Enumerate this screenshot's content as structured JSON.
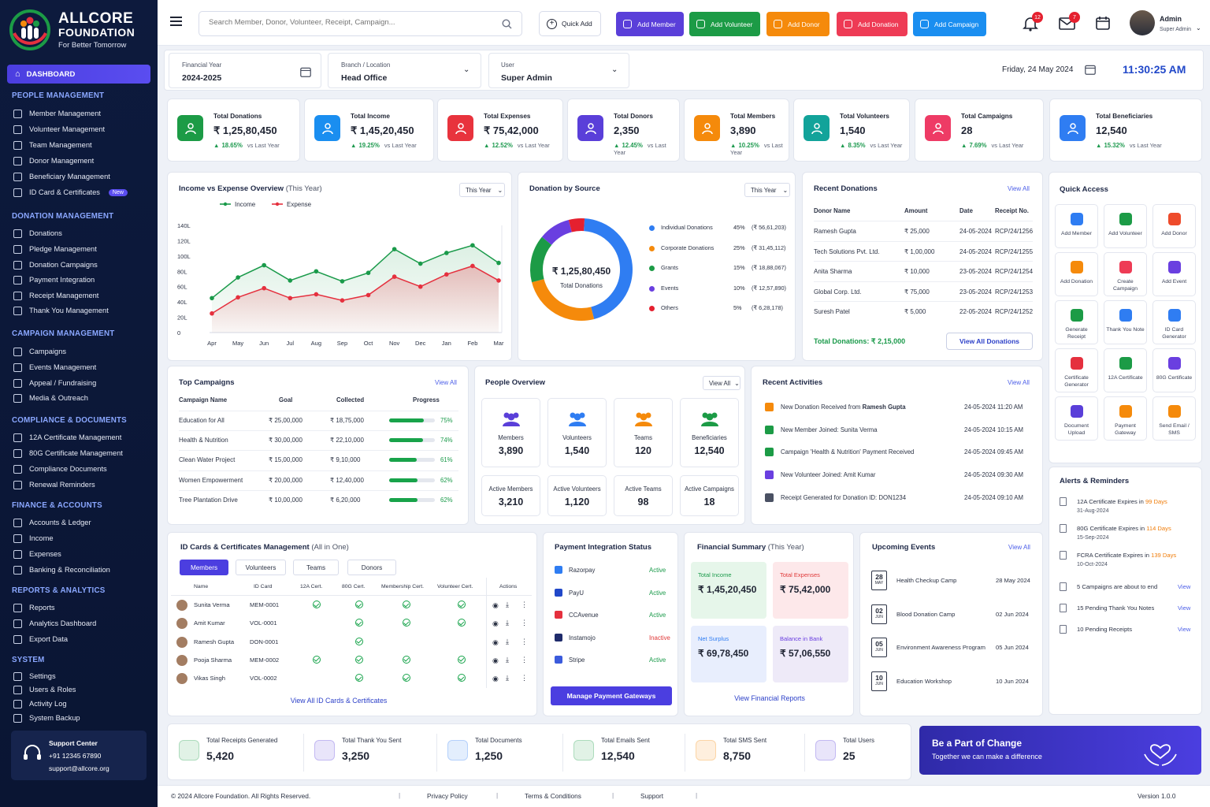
{
  "brand": {
    "name": "ALLCORE",
    "sub": "FOUNDATION",
    "tagline": "For Better Tomorrow"
  },
  "sidebar": {
    "dashboard": "DASHBOARD",
    "sections": [
      {
        "title": "PEOPLE MANAGEMENT",
        "items": [
          "Member Management",
          "Volunteer Management",
          "Team Management",
          "Donor Management",
          "Beneficiary Management",
          "ID Card & Certificates"
        ]
      },
      {
        "title": "DONATION MANAGEMENT",
        "items": [
          "Donations",
          "Pledge Management",
          "Donation Campaigns",
          "Payment Integration",
          "Receipt Management",
          "Thank You Management"
        ]
      },
      {
        "title": "CAMPAIGN MANAGEMENT",
        "items": [
          "Campaigns",
          "Events Management",
          "Appeal / Fundraising",
          "Media & Outreach"
        ]
      },
      {
        "title": "COMPLIANCE & DOCUMENTS",
        "items": [
          "12A Certificate Management",
          "80G Certificate Management",
          "Compliance Documents",
          "Renewal Reminders"
        ]
      },
      {
        "title": "FINANCE & ACCOUNTS",
        "items": [
          "Accounts & Ledger",
          "Income",
          "Expenses",
          "Banking & Reconciliation"
        ]
      },
      {
        "title": "REPORTS & ANALYTICS",
        "items": [
          "Reports",
          "Analytics Dashboard",
          "Export Data"
        ]
      },
      {
        "title": "SYSTEM",
        "items": [
          "Settings",
          "Users & Roles",
          "Activity Log",
          "System Backup"
        ]
      }
    ],
    "new_badge": "New",
    "support": {
      "title": "Support Center",
      "phone": "+91 12345 67890",
      "email": "support@allcore.org"
    }
  },
  "topbar": {
    "search_placeholder": "Search Member, Donor, Volunteer, Receipt, Campaign...",
    "quick_add": "Quick Add",
    "buttons": [
      {
        "label": "Add Member",
        "color": "#5a3fd9"
      },
      {
        "label": "Add Volunteer",
        "color": "#1c9b46"
      },
      {
        "label": "Add Donor",
        "color": "#f58a0b"
      },
      {
        "label": "Add Donation",
        "color": "#ee3b55"
      },
      {
        "label": "Add Campaign",
        "color": "#1a8ef0"
      }
    ],
    "notif_count": "12",
    "mail_count": "7",
    "user_name": "Admin",
    "user_role": "Super Admin"
  },
  "filters": {
    "fy_label": "Financial Year",
    "fy_value": "2024-2025",
    "branch_label": "Branch / Location",
    "branch_value": "Head Office",
    "user_label": "User",
    "user_value": "Super Admin",
    "date": "Friday, 24 May 2024",
    "time": "11:30:25 AM"
  },
  "stats": [
    {
      "label": "Total Donations",
      "value": "₹ 1,25,80,450",
      "change": "18.65%",
      "color": "#1c9b46"
    },
    {
      "label": "Total Income",
      "value": "₹ 1,45,20,450",
      "change": "19.25%",
      "color": "#1a8ef0"
    },
    {
      "label": "Total Expenses",
      "value": "₹ 75,42,000",
      "change": "12.52%",
      "color": "#e8333d"
    },
    {
      "label": "Total Donors",
      "value": "2,350",
      "change": "12.45%",
      "color": "#5a3fd9"
    },
    {
      "label": "Total Members",
      "value": "3,890",
      "change": "10.25%",
      "color": "#f58a0b"
    },
    {
      "label": "Total Volunteers",
      "value": "1,540",
      "change": "8.35%",
      "color": "#12a39a"
    },
    {
      "label": "Total Campaigns",
      "value": "28",
      "change": "7.69%",
      "color": "#ee3b65"
    },
    {
      "label": "Total Beneficiaries",
      "value": "12,540",
      "change": "15.32%",
      "color": "#2f7df2"
    }
  ],
  "vs_last_year": "vs Last Year",
  "income_chart": {
    "title": "Income vs Expense Overview",
    "title_suffix": "(This Year)",
    "period": "This Year",
    "chart_data": {
      "type": "line",
      "categories": [
        "Apr",
        "May",
        "Jun",
        "Jul",
        "Aug",
        "Sep",
        "Oct",
        "Nov",
        "Dec",
        "Jan",
        "Feb",
        "Mar"
      ],
      "series": [
        {
          "name": "Income",
          "color": "#1a9a4a",
          "values": [
            45,
            72,
            88,
            68,
            80,
            67,
            78,
            109,
            90,
            104,
            114,
            91
          ]
        },
        {
          "name": "Expense",
          "color": "#e5303e",
          "values": [
            25,
            46,
            58,
            45,
            50,
            42,
            49,
            73,
            60,
            76,
            87,
            68
          ]
        }
      ],
      "yticks": [
        "0",
        "20L",
        "40L",
        "60L",
        "80L",
        "100L",
        "120L",
        "140L"
      ],
      "ylim": [
        0,
        140
      ]
    }
  },
  "donation_source": {
    "title": "Donation by Source",
    "period": "This Year",
    "center_value": "₹ 1,25,80,450",
    "center_label": "Total Donations",
    "chart_data": {
      "type": "pie",
      "slices": [
        {
          "name": "Individual Donations",
          "pct": "45%",
          "amount": "(₹ 56,61,203)",
          "value": 45,
          "color": "#2f7df2"
        },
        {
          "name": "Corporate Donations",
          "pct": "25%",
          "amount": "(₹ 31,45,112)",
          "value": 25,
          "color": "#f58a0b"
        },
        {
          "name": "Grants",
          "pct": "15%",
          "amount": "(₹ 18,88,067)",
          "value": 15,
          "color": "#1c9b46"
        },
        {
          "name": "Events",
          "pct": "10%",
          "amount": "(₹ 12,57,890)",
          "value": 10,
          "color": "#6a3fe0"
        },
        {
          "name": "Others",
          "pct": "5%",
          "amount": "(₹ 6,28,178)",
          "value": 5,
          "color": "#e5202f"
        }
      ]
    }
  },
  "recent_donations": {
    "title": "Recent Donations",
    "view_all": "View All",
    "headers": [
      "Donor Name",
      "Amount",
      "Date",
      "Receipt No."
    ],
    "rows": [
      [
        "Ramesh Gupta",
        "₹ 25,000",
        "24-05-2024",
        "RCP/24/1256"
      ],
      [
        "Tech Solutions Pvt. Ltd.",
        "₹ 1,00,000",
        "24-05-2024",
        "RCP/24/1255"
      ],
      [
        "Anita Sharma",
        "₹ 10,000",
        "23-05-2024",
        "RCP/24/1254"
      ],
      [
        "Global Corp. Ltd.",
        "₹ 75,000",
        "23-05-2024",
        "RCP/24/1253"
      ],
      [
        "Suresh Patel",
        "₹ 5,000",
        "22-05-2024",
        "RCP/24/1252"
      ]
    ],
    "total_label": "Total Donations:",
    "total_value": "₹ 2,15,000",
    "view_button": "View All Donations"
  },
  "quick_access": {
    "title": "Quick Access",
    "items": [
      {
        "label": "Add Member",
        "color": "#2f7df2"
      },
      {
        "label": "Add Volunteer",
        "color": "#1c9b46"
      },
      {
        "label": "Add Donor",
        "color": "#ee4b2b"
      },
      {
        "label": "Add Donation",
        "color": "#f58a0b"
      },
      {
        "label": "Create Campaign",
        "color": "#ee3b55"
      },
      {
        "label": "Add Event",
        "color": "#6a3fe0"
      },
      {
        "label": "Generate Receipt",
        "color": "#1c9b46"
      },
      {
        "label": "Thank You Note",
        "color": "#2f7df2"
      },
      {
        "label": "ID Card Generator",
        "color": "#2f7df2"
      },
      {
        "label": "Certificate Generator",
        "color": "#e5303e"
      },
      {
        "label": "12A Certificate",
        "color": "#1c9b46"
      },
      {
        "label": "80G Certificate",
        "color": "#6a3fe0"
      },
      {
        "label": "Document Upload",
        "color": "#5a3fd9"
      },
      {
        "label": "Payment Gateway",
        "color": "#f58a0b"
      },
      {
        "label": "Send Email / SMS",
        "color": "#f58a0b"
      }
    ]
  },
  "top_campaigns": {
    "title": "Top Campaigns",
    "view_all": "View All",
    "headers": [
      "Campaign Name",
      "Goal",
      "Collected",
      "Progress"
    ],
    "rows": [
      {
        "name": "Education for All",
        "goal": "₹ 25,00,000",
        "collected": "₹ 18,75,000",
        "pct": "75%",
        "value": 75
      },
      {
        "name": "Health & Nutrition",
        "goal": "₹ 30,00,000",
        "collected": "₹ 22,10,000",
        "pct": "74%",
        "value": 74
      },
      {
        "name": "Clean Water Project",
        "goal": "₹ 15,00,000",
        "collected": "₹ 9,10,000",
        "pct": "61%",
        "value": 61
      },
      {
        "name": "Women Empowerment",
        "goal": "₹ 20,00,000",
        "collected": "₹ 12,40,000",
        "pct": "62%",
        "value": 62
      },
      {
        "name": "Tree Plantation Drive",
        "goal": "₹ 10,00,000",
        "collected": "₹ 6,20,000",
        "pct": "62%",
        "value": 62
      }
    ]
  },
  "people_overview": {
    "title": "People Overview",
    "view_all": "View All",
    "cards": [
      {
        "label": "Members",
        "value": "3,890",
        "color": "#5a3fd9"
      },
      {
        "label": "Volunteers",
        "value": "1,540",
        "color": "#2f7df2"
      },
      {
        "label": "Teams",
        "value": "120",
        "color": "#f58a0b"
      },
      {
        "label": "Beneficiaries",
        "value": "12,540",
        "color": "#1c9b46"
      }
    ],
    "active": [
      {
        "label": "Active Members",
        "value": "3,210"
      },
      {
        "label": "Active Volunteers",
        "value": "1,120"
      },
      {
        "label": "Active Teams",
        "value": "98"
      },
      {
        "label": "Active Campaigns",
        "value": "18"
      }
    ]
  },
  "recent_activities": {
    "title": "Recent Activities",
    "view_all": "View All",
    "items": [
      {
        "pre": "New Donation Received from ",
        "bold": "Ramesh Gupta",
        "time": "24-05-2024 11:20 AM",
        "color": "#f58a0b"
      },
      {
        "pre": "New Member Joined: Sunita Verma",
        "bold": "",
        "time": "24-05-2024 10:15 AM",
        "color": "#1c9b46"
      },
      {
        "pre": "Campaign 'Health & Nutrition' Payment Received",
        "bold": "",
        "time": "24-05-2024 09:45 AM",
        "color": "#1c9b46"
      },
      {
        "pre": "New Volunteer Joined: Amit Kumar",
        "bold": "",
        "time": "24-05-2024 09:30 AM",
        "color": "#6a3fe0"
      },
      {
        "pre": "Receipt Generated for Donation ID: DON1234",
        "bold": "",
        "time": "24-05-2024 09:10 AM",
        "color": "#4a5163"
      }
    ]
  },
  "alerts": {
    "title": "Alerts & Reminders",
    "items": [
      {
        "pre": "12A Certificate Expires in ",
        "hl": "99 Days",
        "sub": "31-Aug-2024",
        "view": ""
      },
      {
        "pre": "80G Certificate Expires in ",
        "hl": "114 Days",
        "sub": "15-Sep-2024",
        "view": ""
      },
      {
        "pre": "FCRA Certificate Expires in ",
        "hl": "139 Days",
        "sub": "10-Oct-2024",
        "view": ""
      },
      {
        "pre": "5 Campaigns are about to end",
        "hl": "",
        "sub": "",
        "view": "View"
      },
      {
        "pre": "15 Pending Thank You Notes",
        "hl": "",
        "sub": "",
        "view": "View"
      },
      {
        "pre": "10 Pending Receipts",
        "hl": "",
        "sub": "",
        "view": "View"
      }
    ]
  },
  "idcards": {
    "title": "ID Cards & Certificates Management",
    "title_suffix": "(All in One)",
    "tabs": [
      "Members",
      "Volunteers",
      "Teams",
      "Donors"
    ],
    "headers": [
      "Name",
      "ID Card",
      "12A Cert.",
      "80G Cert.",
      "Membership Cert.",
      "Volunteer Cert.",
      "Actions"
    ],
    "rows": [
      {
        "name": "Sunita Verma",
        "id": "MEM-0001",
        "c12": true,
        "c80": true,
        "mem": true,
        "vol": true
      },
      {
        "name": "Amit Kumar",
        "id": "VOL-0001",
        "c12": false,
        "c80": true,
        "mem": true,
        "vol": true
      },
      {
        "name": "Ramesh Gupta",
        "id": "DON-0001",
        "c12": false,
        "c80": true,
        "mem": false,
        "vol": false
      },
      {
        "name": "Pooja Sharma",
        "id": "MEM-0002",
        "c12": true,
        "c80": true,
        "mem": true,
        "vol": true
      },
      {
        "name": "Vikas Singh",
        "id": "VOL-0002",
        "c12": false,
        "c80": true,
        "mem": true,
        "vol": true
      }
    ],
    "view_all": "View All ID Cards & Certificates"
  },
  "payment": {
    "title": "Payment Integration Status",
    "items": [
      {
        "name": "Razorpay",
        "status": "Active"
      },
      {
        "name": "PayU",
        "status": "Active"
      },
      {
        "name": "CCAvenue",
        "status": "Active"
      },
      {
        "name": "Instamojo",
        "status": "Inactive"
      },
      {
        "name": "Stripe",
        "status": "Active"
      }
    ],
    "button": "Manage Payment Gateways"
  },
  "financial": {
    "title": "Financial Summary",
    "title_suffix": "(This Year)",
    "boxes": [
      {
        "label": "Total Income",
        "value": "₹ 1,45,20,450"
      },
      {
        "label": "Total Expenses",
        "value": "₹ 75,42,000"
      },
      {
        "label": "Net Surplus",
        "value": "₹ 69,78,450"
      },
      {
        "label": "Balance in Bank",
        "value": "₹ 57,06,550"
      }
    ],
    "link": "View Financial Reports"
  },
  "events": {
    "title": "Upcoming Events",
    "view_all": "View All",
    "items": [
      {
        "day": "28",
        "mon": "MAY",
        "name": "Health Checkup Camp",
        "date": "28 May 2024"
      },
      {
        "day": "02",
        "mon": "JUN",
        "name": "Blood Donation Camp",
        "date": "02 Jun 2024"
      },
      {
        "day": "05",
        "mon": "JUN",
        "name": "Environment Awareness Program",
        "date": "05 Jun 2024"
      },
      {
        "day": "10",
        "mon": "JUN",
        "name": "Education Workshop",
        "date": "10 Jun 2024"
      }
    ]
  },
  "bottom_stats": [
    {
      "label": "Total Receipts Generated",
      "value": "5,420",
      "color": "#1c9b46"
    },
    {
      "label": "Total Thank You Sent",
      "value": "3,250",
      "color": "#5a3fd9"
    },
    {
      "label": "Total Documents",
      "value": "1,250",
      "color": "#2f7df2"
    },
    {
      "label": "Total Emails Sent",
      "value": "12,540",
      "color": "#1c9b46"
    },
    {
      "label": "Total SMS Sent",
      "value": "8,750",
      "color": "#f58a0b"
    },
    {
      "label": "Total Users",
      "value": "25",
      "color": "#5a3fd9"
    }
  ],
  "banner": {
    "title": "Be a Part of Change",
    "sub": "Together we can make a difference"
  },
  "footer": {
    "copy": "© 2024 Allcore Foundation. All Rights Reserved.",
    "privacy": "Privacy Policy",
    "terms": "Terms & Conditions",
    "support": "Support",
    "version": "Version 1.0.0"
  }
}
